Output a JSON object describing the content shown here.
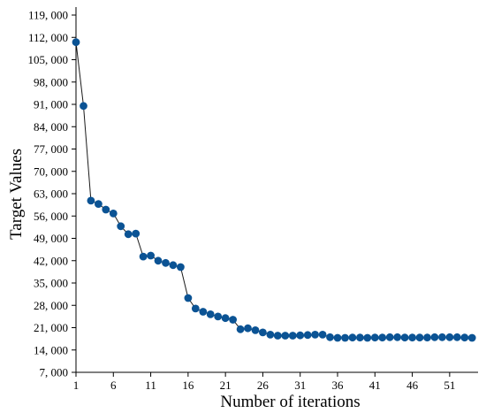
{
  "chart_data": {
    "type": "line",
    "title": "",
    "xlabel": "Number of iterations",
    "ylabel": "Target Values",
    "xlim": [
      1,
      54.8
    ],
    "ylim": [
      7000,
      121500
    ],
    "xticks": [
      1,
      6,
      11,
      16,
      21,
      26,
      31,
      36,
      41,
      46,
      51
    ],
    "xtick_labels": [
      "1",
      "6",
      "11",
      "16",
      "21",
      "26",
      "31",
      "36",
      "41",
      "46",
      "51"
    ],
    "yticks": [
      7000,
      14000,
      21000,
      28000,
      35000,
      42000,
      49000,
      56000,
      63000,
      70000,
      77000,
      84000,
      91000,
      98000,
      105000,
      112000,
      119000
    ],
    "ytick_labels": [
      "7, 000",
      "14, 000",
      "21, 000",
      "28, 000",
      "35, 000",
      "42, 000",
      "49, 000",
      "56, 000",
      "63, 000",
      "70, 000",
      "77, 000",
      "84, 000",
      "91, 000",
      "98, 000",
      "105, 000",
      "112, 000",
      "119, 000"
    ],
    "grid": false,
    "legend": "none",
    "colors": {
      "marker": "#0b5394",
      "line": "#1a1a1a"
    },
    "series": [
      {
        "x": [
          1,
          2,
          3,
          4,
          5,
          6,
          7,
          8,
          9,
          10,
          11,
          12,
          13,
          14,
          15,
          16,
          17,
          18,
          19,
          20,
          21,
          22,
          23,
          24,
          25,
          26,
          27,
          28,
          29,
          30,
          31,
          32,
          33,
          34,
          35,
          36,
          37,
          38,
          39,
          40,
          41,
          42,
          43,
          44,
          45,
          46,
          47,
          48,
          49,
          50,
          51,
          52,
          53,
          54
        ],
        "values": [
          110500,
          90500,
          60800,
          59800,
          58000,
          56800,
          52800,
          50300,
          50500,
          43300,
          43600,
          42000,
          41300,
          40600,
          40000,
          30300,
          27000,
          26000,
          25200,
          24500,
          24000,
          23500,
          20500,
          20800,
          20200,
          19500,
          18800,
          18500,
          18500,
          18500,
          18600,
          18700,
          18800,
          18800,
          18000,
          17800,
          17800,
          17900,
          17900,
          17800,
          17900,
          17900,
          18000,
          18000,
          17900,
          17900,
          17900,
          17900,
          18000,
          18000,
          18000,
          18000,
          17900,
          17800
        ]
      }
    ]
  }
}
